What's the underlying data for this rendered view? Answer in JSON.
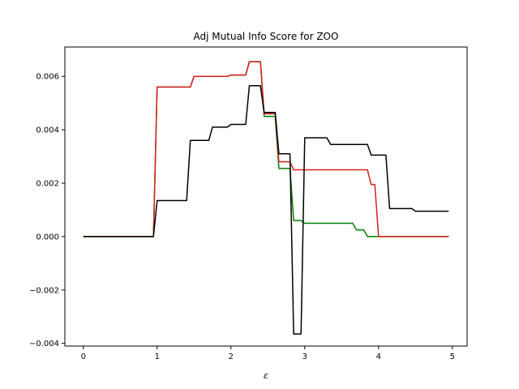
{
  "chart_data": {
    "type": "line",
    "title": "Adj Mutual Info Score for ZOO",
    "xlabel": "ε",
    "ylabel": "",
    "xlim": [
      -0.25,
      5.2
    ],
    "ylim": [
      -0.0041,
      0.0071
    ],
    "xticks": [
      0,
      1,
      2,
      3,
      4,
      5
    ],
    "xtick_labels": [
      "0",
      "1",
      "2",
      "3",
      "4",
      "5"
    ],
    "yticks": [
      -0.004,
      -0.002,
      0.0,
      0.002,
      0.004,
      0.006
    ],
    "ytick_labels": [
      "−0.004",
      "−0.002",
      "0.000",
      "0.002",
      "0.004",
      "0.006"
    ],
    "grid": false,
    "series": [
      {
        "color": "#007f00",
        "points": [
          [
            0,
            0
          ],
          [
            0.95,
            0
          ],
          [
            1.0,
            0.0056
          ],
          [
            1.45,
            0.0056
          ],
          [
            1.5,
            0.006
          ],
          [
            1.95,
            0.006
          ],
          [
            2.0,
            0.00605
          ],
          [
            2.2,
            0.00605
          ],
          [
            2.25,
            0.00655
          ],
          [
            2.4,
            0.00655
          ],
          [
            2.45,
            0.0045
          ],
          [
            2.6,
            0.0045
          ],
          [
            2.65,
            0.00255
          ],
          [
            2.8,
            0.00255
          ],
          [
            2.85,
            0.0006
          ],
          [
            2.95,
            0.0006
          ],
          [
            3.0,
            0.0005
          ],
          [
            3.65,
            0.0005
          ],
          [
            3.7,
            0.00025
          ],
          [
            3.8,
            0.00025
          ],
          [
            3.85,
            0.0
          ],
          [
            4.95,
            0.0
          ]
        ]
      },
      {
        "color": "#d62020",
        "points": [
          [
            0,
            0
          ],
          [
            0.95,
            0
          ],
          [
            1.0,
            0.0056
          ],
          [
            1.45,
            0.0056
          ],
          [
            1.5,
            0.006
          ],
          [
            1.95,
            0.006
          ],
          [
            2.0,
            0.00605
          ],
          [
            2.2,
            0.00605
          ],
          [
            2.25,
            0.00655
          ],
          [
            2.4,
            0.00655
          ],
          [
            2.45,
            0.0046
          ],
          [
            2.6,
            0.0046
          ],
          [
            2.65,
            0.0028
          ],
          [
            2.8,
            0.0028
          ],
          [
            2.85,
            0.0025
          ],
          [
            3.85,
            0.0025
          ],
          [
            3.9,
            0.00195
          ],
          [
            3.95,
            0.00195
          ],
          [
            4.0,
            0.0
          ],
          [
            4.95,
            0.0
          ]
        ]
      },
      {
        "color": "#000000",
        "points": [
          [
            0,
            0
          ],
          [
            0.95,
            0
          ],
          [
            1.0,
            0.00135
          ],
          [
            1.4,
            0.00135
          ],
          [
            1.45,
            0.0036
          ],
          [
            1.7,
            0.0036
          ],
          [
            1.75,
            0.0041
          ],
          [
            1.95,
            0.0041
          ],
          [
            2.0,
            0.0042
          ],
          [
            2.2,
            0.0042
          ],
          [
            2.25,
            0.00565
          ],
          [
            2.4,
            0.00565
          ],
          [
            2.45,
            0.00465
          ],
          [
            2.6,
            0.00465
          ],
          [
            2.65,
            0.0031
          ],
          [
            2.8,
            0.0031
          ],
          [
            2.85,
            -0.00365
          ],
          [
            2.95,
            -0.00365
          ],
          [
            3.0,
            0.0037
          ],
          [
            3.3,
            0.0037
          ],
          [
            3.35,
            0.00345
          ],
          [
            3.85,
            0.00345
          ],
          [
            3.9,
            0.00305
          ],
          [
            4.1,
            0.00305
          ],
          [
            4.15,
            0.00105
          ],
          [
            4.45,
            0.00105
          ],
          [
            4.5,
            0.00095
          ],
          [
            4.95,
            0.00095
          ]
        ]
      }
    ]
  }
}
